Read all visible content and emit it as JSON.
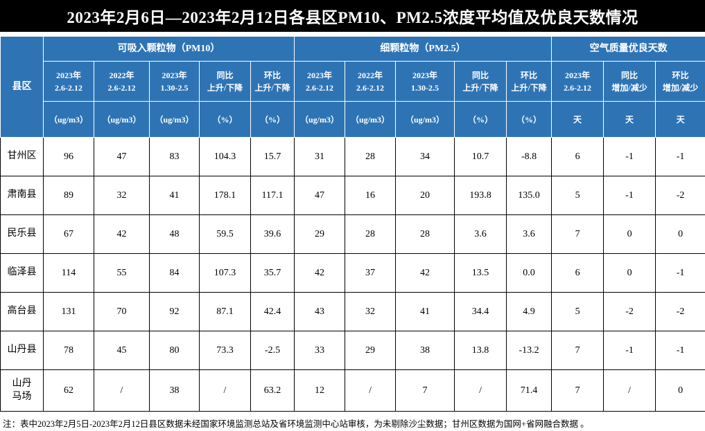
{
  "title": "2023年2月6日—2023年2月12日各县区PM10、PM2.5浓度平均值及优良天数情况",
  "footnote": "注：表中2023年2月5日-2023年2月12日县区数据未经国家环境监测总站及省环境监测中心站审核，为未剔除沙尘数据；甘州区数据为国网+省网融合数据 。",
  "colors": {
    "header_blue": "#2e74b5",
    "title_bg": "#000000",
    "title_text": "#ffffff",
    "border": "#000000"
  },
  "chart_data": {
    "type": "table",
    "title": "2023年2月6日—2023年2月12日各县区PM10、PM2.5浓度平均值及优良天数情况",
    "corner_label": "县区",
    "groups": [
      {
        "label": "可吸入颗粒物（PM10）",
        "span": 5
      },
      {
        "label": "细颗粒物（PM2.5）",
        "span": 5
      },
      {
        "label": "空气质量优良天数",
        "span": 3
      }
    ],
    "columns": [
      {
        "period": "2023年\n2.6-2.12",
        "unit": "（ug/m3）"
      },
      {
        "period": "2022年\n2.6-2.12",
        "unit": "（ug/m3）"
      },
      {
        "period": "2023年\n1.30-2.5",
        "unit": "（ug/m3）"
      },
      {
        "period": "同比\n上升/下降",
        "unit": "（%）"
      },
      {
        "period": "环比\n上升/下降",
        "unit": "（%）"
      },
      {
        "period": "2023年\n2.6-2.12",
        "unit": "（ug/m3）"
      },
      {
        "period": "2022年\n2.6-2.12",
        "unit": "（ug/m3）"
      },
      {
        "period": "2023年\n1.30-2.5",
        "unit": "（ug/m3）"
      },
      {
        "period": "同比\n上升/下降",
        "unit": "（%）"
      },
      {
        "period": "环比\n上升/下降",
        "unit": "（%）"
      },
      {
        "period": "2023年\n2.6-2.12",
        "unit": "天"
      },
      {
        "period": "同比\n增加/减少",
        "unit": "天"
      },
      {
        "period": "环比\n增加/减少",
        "unit": "天"
      }
    ],
    "rows": [
      {
        "name": "甘州区",
        "values": [
          "96",
          "47",
          "83",
          "104.3",
          "15.7",
          "31",
          "28",
          "34",
          "10.7",
          "-8.8",
          "6",
          "-1",
          "-1"
        ]
      },
      {
        "name": "肃南县",
        "values": [
          "89",
          "32",
          "41",
          "178.1",
          "117.1",
          "47",
          "16",
          "20",
          "193.8",
          "135.0",
          "5",
          "-1",
          "-2"
        ]
      },
      {
        "name": "民乐县",
        "values": [
          "67",
          "42",
          "48",
          "59.5",
          "39.6",
          "29",
          "28",
          "28",
          "3.6",
          "3.6",
          "7",
          "0",
          "0"
        ]
      },
      {
        "name": "临泽县",
        "values": [
          "114",
          "55",
          "84",
          "107.3",
          "35.7",
          "42",
          "37",
          "42",
          "13.5",
          "0.0",
          "6",
          "0",
          "-1"
        ]
      },
      {
        "name": "高台县",
        "values": [
          "131",
          "70",
          "92",
          "87.1",
          "42.4",
          "43",
          "32",
          "41",
          "34.4",
          "4.9",
          "5",
          "-2",
          "-2"
        ]
      },
      {
        "name": "山丹县",
        "values": [
          "78",
          "45",
          "80",
          "73.3",
          "-2.5",
          "33",
          "29",
          "38",
          "13.8",
          "-13.2",
          "7",
          "-1",
          "-1"
        ]
      },
      {
        "name": "山丹\n马场",
        "values": [
          "62",
          "/",
          "38",
          "/",
          "63.2",
          "12",
          "/",
          "7",
          "/",
          "71.4",
          "7",
          "/",
          "0"
        ]
      }
    ]
  }
}
